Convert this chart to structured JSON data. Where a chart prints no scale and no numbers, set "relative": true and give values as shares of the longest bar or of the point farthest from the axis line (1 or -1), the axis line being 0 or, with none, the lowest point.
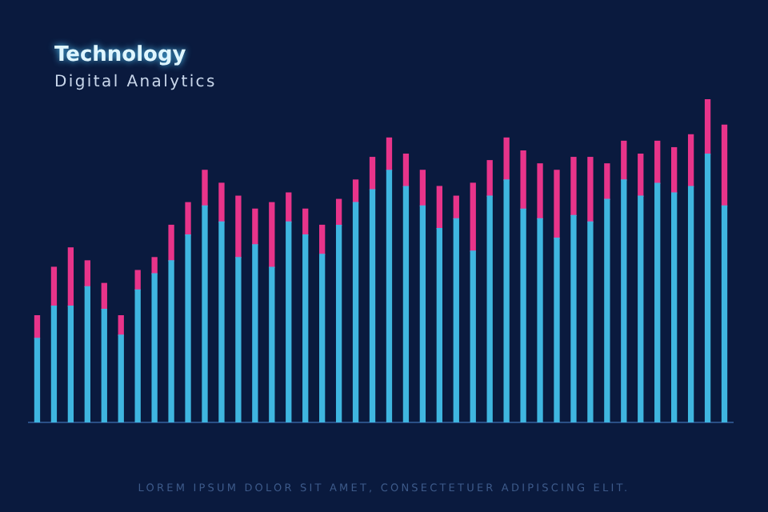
{
  "chart_data": {
    "type": "bar",
    "stacked": true,
    "title": "Technology",
    "subtitle": "Digital Analytics",
    "annotations": [
      "LOREM IPSUM DOLOR SIT AMET, CONSECTETUER ADIPISCING ELIT."
    ],
    "relative": true,
    "legend": false,
    "categories": [
      null,
      null,
      null,
      null,
      null,
      null,
      null,
      null,
      null,
      null,
      null,
      null,
      null,
      null,
      null,
      null,
      null,
      null,
      null,
      null,
      null,
      null,
      null,
      null,
      null,
      null,
      null,
      null,
      null,
      null,
      null,
      null,
      null,
      null,
      null,
      null,
      null,
      null,
      null,
      null,
      null,
      null
    ],
    "series": [
      {
        "color": "#3fb6e0",
        "values": [
          0.26,
          0.36,
          0.36,
          0.42,
          0.35,
          0.27,
          0.41,
          0.46,
          0.5,
          0.58,
          0.67,
          0.62,
          0.51,
          0.55,
          0.48,
          0.62,
          0.58,
          0.52,
          0.61,
          0.68,
          0.72,
          0.78,
          0.73,
          0.67,
          0.6,
          0.63,
          0.53,
          0.7,
          0.75,
          0.66,
          0.63,
          0.57,
          0.64,
          0.62,
          0.69,
          0.75,
          0.7,
          0.74,
          0.71,
          0.73,
          0.83,
          0.67
        ]
      },
      {
        "color": "#e8348a",
        "values": [
          0.07,
          0.12,
          0.18,
          0.08,
          0.08,
          0.06,
          0.06,
          0.05,
          0.11,
          0.1,
          0.11,
          0.12,
          0.19,
          0.11,
          0.2,
          0.09,
          0.08,
          0.09,
          0.08,
          0.07,
          0.1,
          0.1,
          0.1,
          0.11,
          0.13,
          0.07,
          0.21,
          0.11,
          0.13,
          0.18,
          0.17,
          0.21,
          0.18,
          0.2,
          0.11,
          0.12,
          0.13,
          0.13,
          0.14,
          0.16,
          0.17,
          0.25
        ]
      }
    ]
  }
}
